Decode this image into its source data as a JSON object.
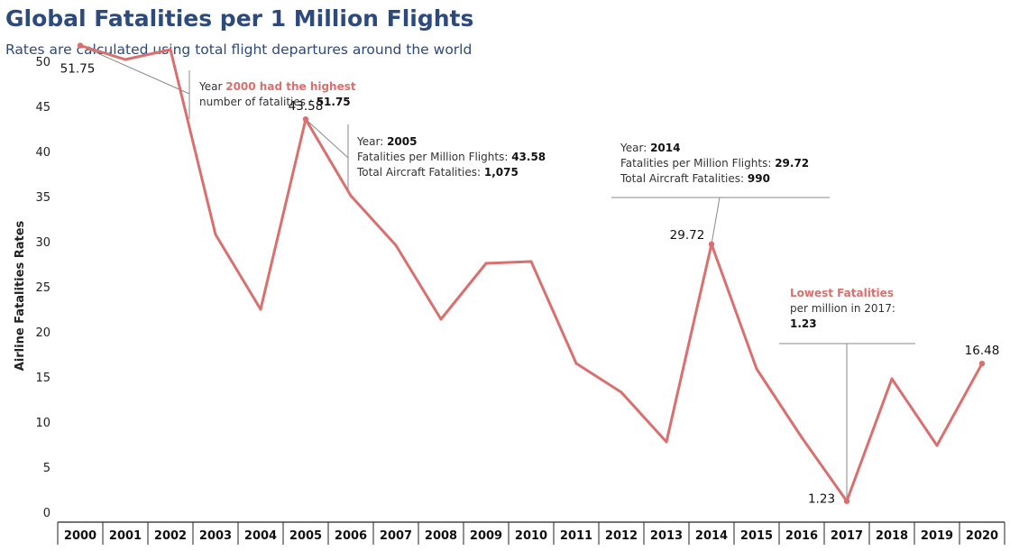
{
  "title": "Global Fatalities per 1 Million Flights",
  "subtitle": "Rates are calculated using total flight departures around the world",
  "colors": {
    "line": "#d9706f",
    "title": "#2e4a7a",
    "annotation_highlight": "#d9706f"
  },
  "annotations": {
    "a2000": {
      "prefix": "Year ",
      "highlight": "2000 had the highest",
      "line2": "number of fatalities : ",
      "value": "51.75"
    },
    "a2005": {
      "year_label": "Year: ",
      "year": "2005",
      "rate_label": "Fatalities per Million Flights: ",
      "rate": "43.58",
      "total_label": "Total Aircraft Fatalities: ",
      "total": "1,075"
    },
    "a2014": {
      "year_label": "Year: ",
      "year": "2014",
      "rate_label": "Fatalities per Million Flights: ",
      "rate": "29.72",
      "total_label": "Total Aircraft Fatalities: ",
      "total": "990"
    },
    "a2017": {
      "highlight": "Lowest Fatalities",
      "line2": "per million in 2017:",
      "value": "1.23"
    }
  },
  "chart_data": {
    "type": "line",
    "title": "Global Fatalities per 1 Million Flights",
    "subtitle": "Rates are calculated using total flight departures around the world",
    "xlabel": "",
    "ylabel": "Airline Fatalities Rates",
    "ylim": [
      0,
      55
    ],
    "yticks": [
      0,
      5,
      10,
      15,
      20,
      25,
      30,
      35,
      40,
      45,
      50
    ],
    "categories": [
      "2000",
      "2001",
      "2002",
      "2003",
      "2004",
      "2005",
      "2006",
      "2007",
      "2008",
      "2009",
      "2010",
      "2011",
      "2012",
      "2013",
      "2014",
      "2015",
      "2016",
      "2017",
      "2018",
      "2019",
      "2020"
    ],
    "series": [
      {
        "values": [
          51.75,
          50.2,
          51.3,
          30.8,
          22.5,
          43.58,
          35.1,
          29.6,
          21.4,
          27.6,
          27.8,
          16.5,
          13.3,
          7.8,
          29.72,
          15.9,
          8.3,
          1.23,
          14.8,
          7.4,
          16.48
        ]
      }
    ],
    "data_labels": [
      {
        "index": 0,
        "text": "51.75"
      },
      {
        "index": 5,
        "text": "43.58"
      },
      {
        "index": 14,
        "text": "29.72"
      },
      {
        "index": 17,
        "text": "1.23"
      },
      {
        "index": 20,
        "text": "16.48"
      }
    ],
    "grid": false,
    "legend": "none"
  }
}
